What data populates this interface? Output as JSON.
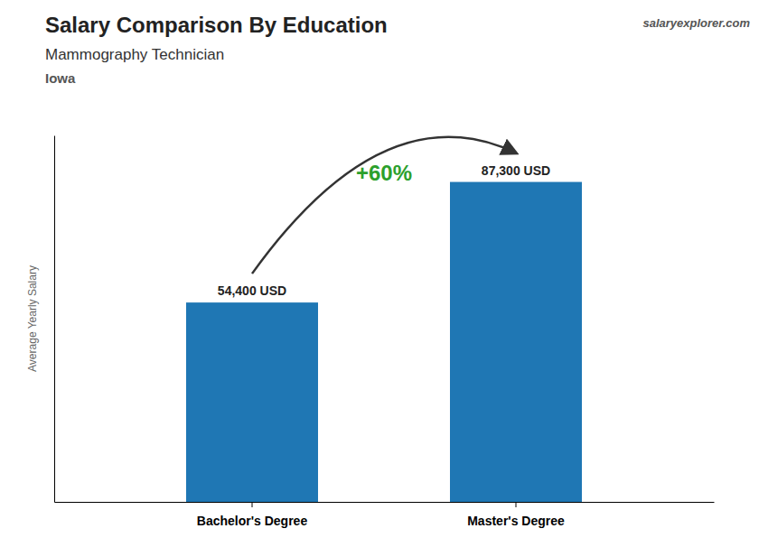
{
  "chart_data": {
    "type": "bar",
    "title": "Salary Comparison By Education",
    "subtitle": "Mammography Technician",
    "annotations": [
      "Iowa",
      "+60%",
      "salaryexplorer.com"
    ],
    "ylabel": "Average Yearly Salary",
    "categories": [
      "Bachelor's Degree",
      "Master's Degree"
    ],
    "values": [
      54400,
      87300
    ],
    "value_labels": [
      "54,400 USD",
      "87,300 USD"
    ],
    "data_labels": true,
    "ylim": [
      0,
      100000
    ],
    "tick_labels": "x"
  }
}
